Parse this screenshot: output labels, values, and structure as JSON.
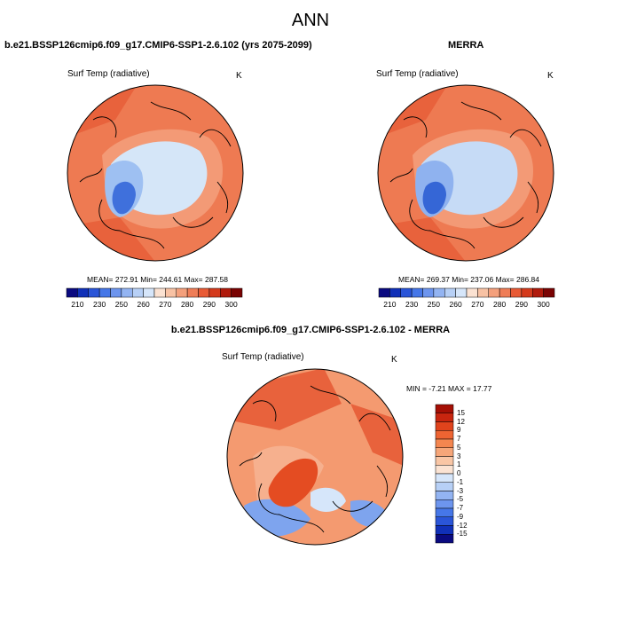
{
  "title": "ANN",
  "panels": {
    "model": {
      "title": "b.e21.BSSP126cmip6.f09_g17.CMIP6-SSP1-2.6.102 (yrs 2075-2099)",
      "variable": "Surf Temp (radiative)",
      "units": "K",
      "stats": "MEAN= 272.91  Min= 244.61  Max= 287.58"
    },
    "obs": {
      "title": "MERRA",
      "variable": "Surf Temp (radiative)",
      "units": "K",
      "stats": "MEAN= 269.37  Min= 237.06  Max= 286.84"
    },
    "diff": {
      "title": "b.e21.BSSP126cmip6.f09_g17.CMIP6-SSP1-2.6.102 - MERRA",
      "variable": "Surf Temp (radiative)",
      "units": "K",
      "stats": "MIN =  -7.21 MAX =  17.77"
    }
  },
  "colorbars": {
    "absolute": {
      "ticks": [
        "210",
        "230",
        "250",
        "260",
        "270",
        "280",
        "290",
        "300"
      ],
      "colors": [
        "#0a0a80",
        "#1030b8",
        "#2a55d8",
        "#4677e8",
        "#6d95ee",
        "#93b4f2",
        "#b7d0f6",
        "#d6e6fa",
        "#fbe2d2",
        "#f8c2a4",
        "#f4a07c",
        "#ef7d57",
        "#e85a35",
        "#d43a1c",
        "#b01a0c",
        "#7a0303"
      ]
    },
    "difference": {
      "ticks": [
        "15",
        "12",
        "9",
        "7",
        "5",
        "3",
        "1",
        "0",
        "-1",
        "-3",
        "-5",
        "-7",
        "-9",
        "-12",
        "-15"
      ],
      "colors": [
        "#a50f05",
        "#c8250f",
        "#e0431c",
        "#ee6432",
        "#f4864f",
        "#f6a679",
        "#f9c6a5",
        "#fbe3d3",
        "#d6e6fa",
        "#b7d0f6",
        "#93b4f2",
        "#6d95ee",
        "#4677e8",
        "#2a55d8",
        "#1030b8",
        "#0a0a80"
      ]
    }
  },
  "maps": {
    "model": {
      "land": "#ee7a52",
      "mid": "#f39a76",
      "warm": "#e8623c",
      "ice": "#d5e6f8",
      "cold": "#9ec0f2",
      "core": "#3f70dc"
    },
    "obs": {
      "land": "#ee7a52",
      "mid": "#f39a76",
      "warm": "#e8623c",
      "ice": "#c6dbf6",
      "cold": "#8fb2ef",
      "core": "#3566d6"
    },
    "diff": {
      "land": "#f49a70",
      "mid": "#f6b08e",
      "warm": "#e8623c",
      "ice": "#d6e6fa",
      "cold": "#7ea4ee",
      "core": "#e44c22"
    }
  }
}
